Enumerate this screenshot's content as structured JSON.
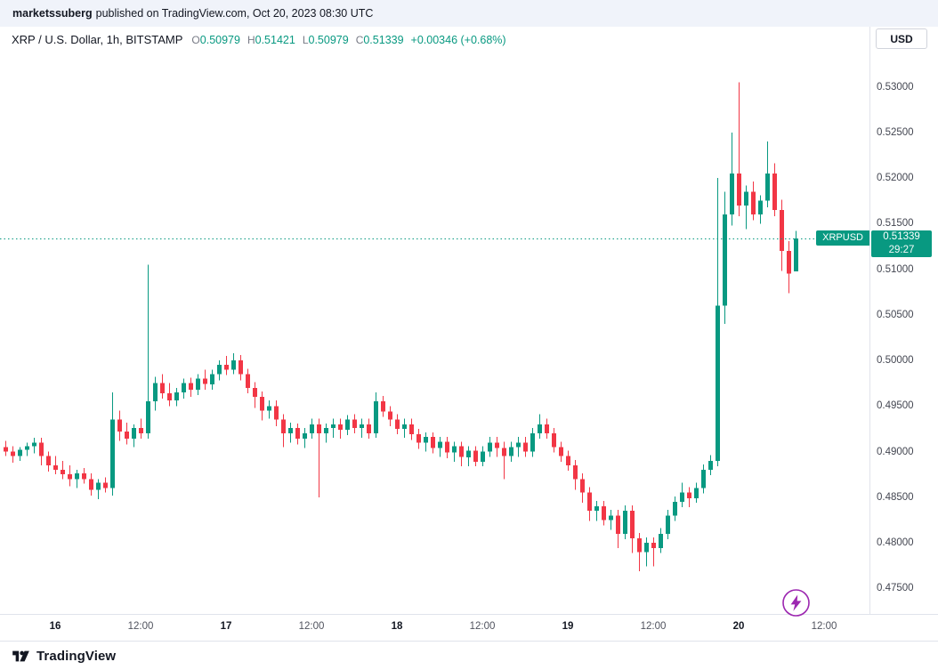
{
  "header": {
    "username": "marketssuberg",
    "suffix": "published on TradingView.com, Oct 20, 2023 08:30 UTC"
  },
  "toolbar": {
    "currency": "USD"
  },
  "legend": {
    "title": "XRP / U.S. Dollar, 1h, BITSTAMP",
    "o_label": "O",
    "o": "0.50979",
    "h_label": "H",
    "h": "0.51421",
    "l_label": "L",
    "l": "0.50979",
    "c_label": "C",
    "c": "0.51339",
    "change": "+0.00346 (+0.68%)"
  },
  "price_line": {
    "symbol": "XRPUSD",
    "price": "0.51339",
    "countdown": "29:27",
    "value": 0.51339
  },
  "footer": {
    "brand": "TradingView"
  },
  "colors": {
    "up": "#089981",
    "down": "#f23645",
    "text": "#131722",
    "purple": "#9c27b0"
  },
  "chart_data": {
    "type": "candlestick",
    "symbol": "XRP/USD",
    "exchange": "BITSTAMP",
    "interval": "1h",
    "title": "XRP / U.S. Dollar, 1h, BITSTAMP",
    "last_bar": {
      "o": 0.50979,
      "h": 0.51421,
      "l": 0.50979,
      "c": 0.51339,
      "change": "+0.00346 (+0.68%)"
    },
    "y_range": [
      0.4722,
      0.5366
    ],
    "price_ticks": [
      0.53,
      0.525,
      0.52,
      0.515,
      0.51,
      0.505,
      0.5,
      0.495,
      0.49,
      0.485,
      0.48,
      0.475
    ],
    "x_ticks": [
      {
        "label": "16",
        "i": 7,
        "major": true
      },
      {
        "label": "12:00",
        "i": 19,
        "major": false
      },
      {
        "label": "17",
        "i": 31,
        "major": true
      },
      {
        "label": "12:00",
        "i": 43,
        "major": false
      },
      {
        "label": "18",
        "i": 55,
        "major": true
      },
      {
        "label": "12:00",
        "i": 67,
        "major": false
      },
      {
        "label": "19",
        "i": 79,
        "major": true
      },
      {
        "label": "12:00",
        "i": 91,
        "major": false
      },
      {
        "label": "20",
        "i": 103,
        "major": true
      },
      {
        "label": "12:00",
        "i": 115,
        "major": false
      }
    ],
    "candles": [
      [
        0.4905,
        0.4912,
        0.4895,
        0.49
      ],
      [
        0.49,
        0.4906,
        0.4888,
        0.4895
      ],
      [
        0.4895,
        0.4905,
        0.489,
        0.4902
      ],
      [
        0.4902,
        0.491,
        0.4895,
        0.4906
      ],
      [
        0.4906,
        0.4915,
        0.4898,
        0.491
      ],
      [
        0.491,
        0.4915,
        0.4885,
        0.4895
      ],
      [
        0.4895,
        0.49,
        0.4878,
        0.4885
      ],
      [
        0.4885,
        0.4895,
        0.4875,
        0.488
      ],
      [
        0.488,
        0.489,
        0.487,
        0.4875
      ],
      [
        0.4875,
        0.4885,
        0.4862,
        0.487
      ],
      [
        0.487,
        0.488,
        0.486,
        0.4876
      ],
      [
        0.4876,
        0.4882,
        0.4865,
        0.487
      ],
      [
        0.487,
        0.4876,
        0.4852,
        0.4858
      ],
      [
        0.4858,
        0.487,
        0.4848,
        0.4866
      ],
      [
        0.4866,
        0.4872,
        0.4855,
        0.486
      ],
      [
        0.486,
        0.4965,
        0.4852,
        0.4935
      ],
      [
        0.4935,
        0.4945,
        0.4912,
        0.4922
      ],
      [
        0.4922,
        0.4932,
        0.4908,
        0.4914
      ],
      [
        0.4914,
        0.493,
        0.4905,
        0.4926
      ],
      [
        0.4926,
        0.4936,
        0.4914,
        0.492
      ],
      [
        0.492,
        0.5105,
        0.4914,
        0.4955
      ],
      [
        0.4955,
        0.4982,
        0.4945,
        0.4975
      ],
      [
        0.4975,
        0.4985,
        0.4958,
        0.4964
      ],
      [
        0.4964,
        0.4975,
        0.495,
        0.4956
      ],
      [
        0.4956,
        0.497,
        0.495,
        0.4965
      ],
      [
        0.4965,
        0.498,
        0.4958,
        0.4975
      ],
      [
        0.4975,
        0.4981,
        0.496,
        0.4968
      ],
      [
        0.4968,
        0.4985,
        0.4962,
        0.498
      ],
      [
        0.498,
        0.499,
        0.4968,
        0.4974
      ],
      [
        0.4974,
        0.499,
        0.4968,
        0.4985
      ],
      [
        0.4985,
        0.5,
        0.4978,
        0.4995
      ],
      [
        0.4995,
        0.5005,
        0.4984,
        0.499
      ],
      [
        0.499,
        0.5008,
        0.4985,
        0.5
      ],
      [
        0.5,
        0.5006,
        0.4978,
        0.4985
      ],
      [
        0.4985,
        0.4991,
        0.4964,
        0.497
      ],
      [
        0.497,
        0.4976,
        0.4948,
        0.496
      ],
      [
        0.496,
        0.4966,
        0.4934,
        0.4945
      ],
      [
        0.4945,
        0.4956,
        0.4936,
        0.495
      ],
      [
        0.495,
        0.4956,
        0.4928,
        0.4935
      ],
      [
        0.4935,
        0.4941,
        0.4905,
        0.492
      ],
      [
        0.492,
        0.4932,
        0.491,
        0.4926
      ],
      [
        0.4926,
        0.4931,
        0.4908,
        0.4914
      ],
      [
        0.4914,
        0.4926,
        0.4904,
        0.492
      ],
      [
        0.492,
        0.4936,
        0.4914,
        0.493
      ],
      [
        0.493,
        0.4936,
        0.485,
        0.492
      ],
      [
        0.492,
        0.4931,
        0.491,
        0.4926
      ],
      [
        0.4926,
        0.4936,
        0.4915,
        0.493
      ],
      [
        0.493,
        0.4936,
        0.4914,
        0.4924
      ],
      [
        0.4924,
        0.494,
        0.4918,
        0.4935
      ],
      [
        0.4935,
        0.4941,
        0.492,
        0.4926
      ],
      [
        0.4926,
        0.4936,
        0.4915,
        0.493
      ],
      [
        0.493,
        0.4936,
        0.4914,
        0.492
      ],
      [
        0.492,
        0.4965,
        0.4915,
        0.4955
      ],
      [
        0.4955,
        0.4961,
        0.4938,
        0.4944
      ],
      [
        0.4944,
        0.495,
        0.4928,
        0.4935
      ],
      [
        0.4935,
        0.4941,
        0.4919,
        0.4925
      ],
      [
        0.4925,
        0.4936,
        0.4915,
        0.493
      ],
      [
        0.493,
        0.4936,
        0.4913,
        0.4919
      ],
      [
        0.4919,
        0.4925,
        0.4903,
        0.491
      ],
      [
        0.491,
        0.4921,
        0.49,
        0.4916
      ],
      [
        0.4916,
        0.4921,
        0.4898,
        0.4904
      ],
      [
        0.4904,
        0.4916,
        0.4894,
        0.4911
      ],
      [
        0.4911,
        0.4916,
        0.4893,
        0.4899
      ],
      [
        0.4899,
        0.4911,
        0.4889,
        0.4906
      ],
      [
        0.4906,
        0.4911,
        0.4884,
        0.4894
      ],
      [
        0.4894,
        0.4906,
        0.4884,
        0.4901
      ],
      [
        0.4901,
        0.4906,
        0.4884,
        0.4889
      ],
      [
        0.4889,
        0.4906,
        0.4884,
        0.49
      ],
      [
        0.49,
        0.4916,
        0.4894,
        0.491
      ],
      [
        0.491,
        0.4916,
        0.4894,
        0.4904
      ],
      [
        0.4904,
        0.4911,
        0.487,
        0.4895
      ],
      [
        0.4895,
        0.4911,
        0.4889,
        0.4905
      ],
      [
        0.4905,
        0.4916,
        0.4894,
        0.491
      ],
      [
        0.491,
        0.4916,
        0.4894,
        0.49
      ],
      [
        0.49,
        0.4926,
        0.4894,
        0.492
      ],
      [
        0.492,
        0.4941,
        0.4914,
        0.493
      ],
      [
        0.493,
        0.4936,
        0.4914,
        0.492
      ],
      [
        0.492,
        0.4926,
        0.4899,
        0.4905
      ],
      [
        0.4905,
        0.4911,
        0.4889,
        0.4895
      ],
      [
        0.4895,
        0.4901,
        0.4879,
        0.4885
      ],
      [
        0.4885,
        0.4891,
        0.4858,
        0.487
      ],
      [
        0.487,
        0.4876,
        0.4844,
        0.4855
      ],
      [
        0.4855,
        0.4861,
        0.4824,
        0.4835
      ],
      [
        0.4835,
        0.4846,
        0.4824,
        0.484
      ],
      [
        0.484,
        0.4846,
        0.4819,
        0.4825
      ],
      [
        0.4825,
        0.4836,
        0.4814,
        0.483
      ],
      [
        0.483,
        0.4836,
        0.4794,
        0.481
      ],
      [
        0.481,
        0.4841,
        0.4804,
        0.4835
      ],
      [
        0.4835,
        0.4841,
        0.4789,
        0.4805
      ],
      [
        0.4805,
        0.4811,
        0.4769,
        0.479
      ],
      [
        0.479,
        0.4806,
        0.4774,
        0.48
      ],
      [
        0.48,
        0.4806,
        0.4774,
        0.4794
      ],
      [
        0.4794,
        0.4816,
        0.4789,
        0.481
      ],
      [
        0.481,
        0.4836,
        0.4804,
        0.483
      ],
      [
        0.483,
        0.4851,
        0.4824,
        0.4845
      ],
      [
        0.4845,
        0.4866,
        0.4839,
        0.4855
      ],
      [
        0.4855,
        0.4861,
        0.4839,
        0.4849
      ],
      [
        0.4849,
        0.4866,
        0.4844,
        0.486
      ],
      [
        0.486,
        0.4886,
        0.4854,
        0.488
      ],
      [
        0.488,
        0.4896,
        0.4874,
        0.489
      ],
      [
        0.489,
        0.52,
        0.4884,
        0.506
      ],
      [
        0.506,
        0.5185,
        0.504,
        0.516
      ],
      [
        0.516,
        0.525,
        0.5148,
        0.5205
      ],
      [
        0.5205,
        0.5305,
        0.5158,
        0.517
      ],
      [
        0.517,
        0.5192,
        0.5144,
        0.5185
      ],
      [
        0.5185,
        0.5196,
        0.5154,
        0.516
      ],
      [
        0.516,
        0.5181,
        0.515,
        0.5175
      ],
      [
        0.5175,
        0.524,
        0.5168,
        0.5205
      ],
      [
        0.5205,
        0.5216,
        0.5158,
        0.5165
      ],
      [
        0.5165,
        0.5176,
        0.5098,
        0.512
      ],
      [
        0.512,
        0.5131,
        0.5074,
        0.5095
      ],
      [
        0.50979,
        0.51421,
        0.50979,
        0.51339
      ]
    ]
  }
}
